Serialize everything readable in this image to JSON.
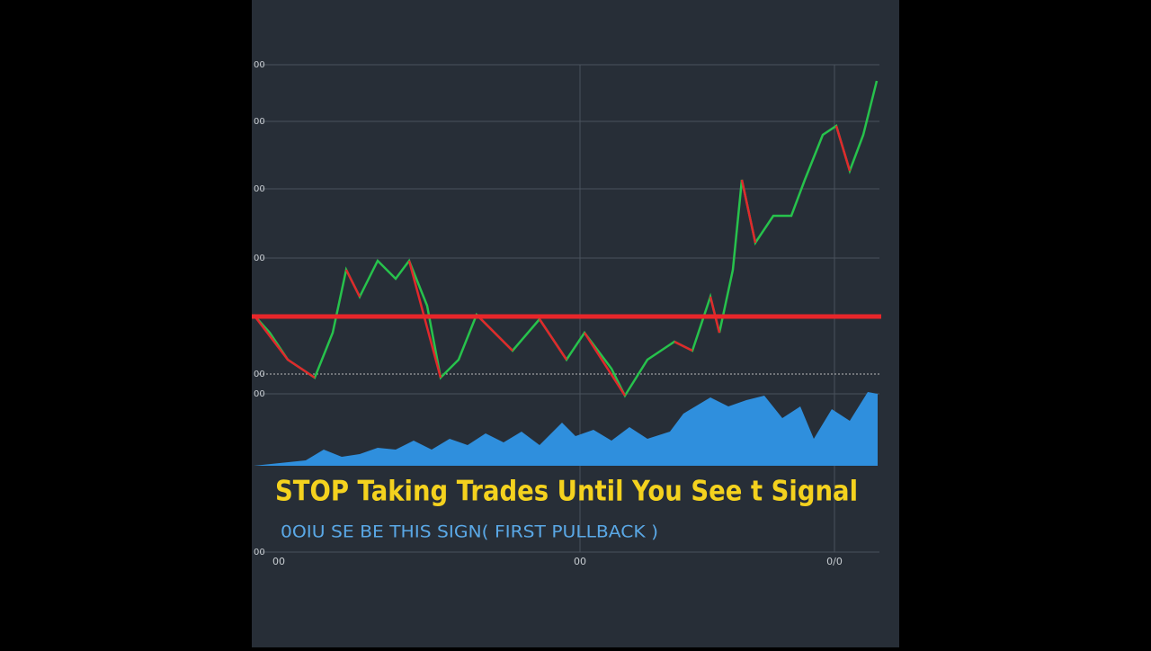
{
  "header": {
    "title": "STOP Taking Trades Until You See t Signal",
    "subtitle": "0OIU SE BE THIS SIGN( FIRST PULLBACK )"
  },
  "axis": {
    "y_labels": [
      "00",
      "00",
      "00",
      "00",
      "00",
      "00",
      "00"
    ],
    "x_labels": [
      "00",
      "00",
      "0/0"
    ]
  }
}
